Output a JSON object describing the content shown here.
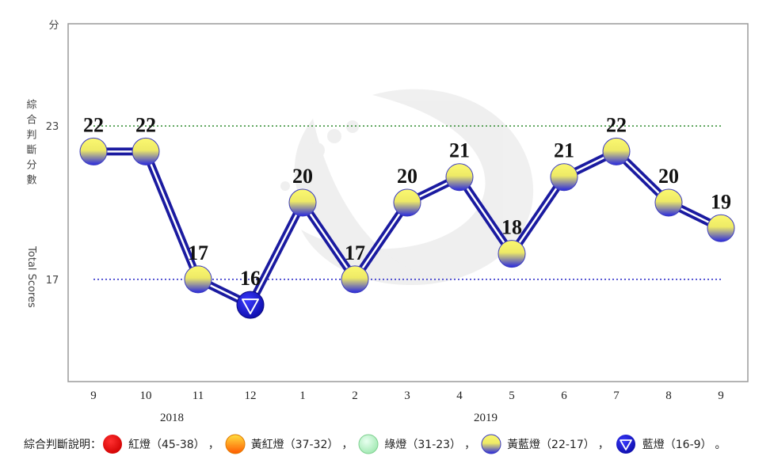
{
  "chart_data": {
    "type": "line",
    "y_unit_label": "分",
    "ylabel_zh": "綜合判斷分數",
    "ylabel_en": "Total Scores",
    "ylim": [
      13,
      27
    ],
    "yticks": [
      17,
      23
    ],
    "reference_lines": [
      {
        "value": 23,
        "color": "#2e8b2e"
      },
      {
        "value": 17,
        "color": "#2323c8"
      }
    ],
    "categories": [
      "9",
      "10",
      "11",
      "12",
      "1",
      "2",
      "3",
      "4",
      "5",
      "6",
      "7",
      "8",
      "9"
    ],
    "years": [
      {
        "label": "2018",
        "under_index": 1.5
      },
      {
        "label": "2019",
        "under_index": 7.5
      }
    ],
    "values": [
      22,
      22,
      17,
      16,
      20,
      17,
      20,
      21,
      18,
      21,
      22,
      20,
      19
    ],
    "series_color": "#1a1aa0",
    "light_colors": {
      "red": "#e60000",
      "yellow_red": "#ffa500",
      "green": "#aaf0b4",
      "yellow_blue": "#f5f064",
      "blue": "#1a1ad2"
    }
  },
  "legend": {
    "prefix": "綜合判斷說明：",
    "items": [
      {
        "icon": "red-light-icon",
        "label": "紅燈（45-38）"
      },
      {
        "icon": "yellow-red-light-icon",
        "label": "黃紅燈（37-32）"
      },
      {
        "icon": "green-light-icon",
        "label": "綠燈（31-23）"
      },
      {
        "icon": "yellow-blue-light-icon",
        "label": "黃藍燈（22-17）"
      },
      {
        "icon": "blue-light-icon",
        "label": "藍燈（16-9）"
      }
    ],
    "separator": "，",
    "end": "。"
  }
}
